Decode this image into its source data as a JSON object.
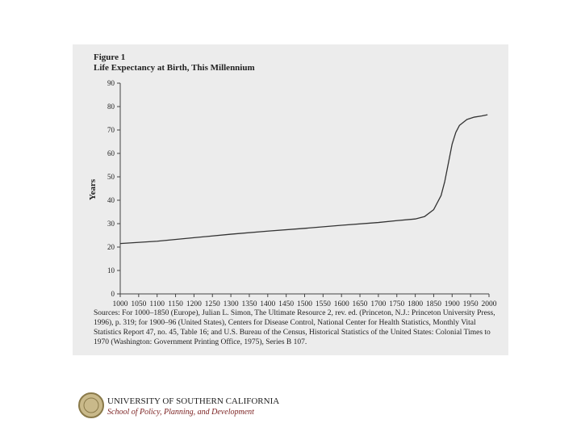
{
  "chart_data": {
    "type": "line",
    "figure_label": "Figure 1",
    "title": "Life Expectancy at Birth, This Millennium",
    "y_label": "Years",
    "x": [
      1000,
      1100,
      1200,
      1300,
      1400,
      1500,
      1600,
      1700,
      1750,
      1800,
      1825,
      1850,
      1870,
      1880,
      1890,
      1900,
      1910,
      1920,
      1940,
      1960,
      1980,
      1996
    ],
    "values": [
      21.5,
      22.5,
      24,
      25.5,
      26.8,
      28,
      29.3,
      30.5,
      31.3,
      32,
      33,
      36,
      42,
      48,
      56,
      64,
      69,
      72,
      74.5,
      75.5,
      76,
      76.5
    ],
    "color": "#333333",
    "xlim": [
      1000,
      2000
    ],
    "xticks": [
      1000,
      1050,
      1100,
      1150,
      1200,
      1250,
      1300,
      1350,
      1400,
      1450,
      1500,
      1550,
      1600,
      1650,
      1700,
      1750,
      1800,
      1850,
      1900,
      1950,
      2000
    ],
    "ylim": [
      0,
      90
    ],
    "yticks": [
      0,
      10,
      20,
      30,
      40,
      50,
      60,
      70,
      80,
      90
    ],
    "grid": false
  },
  "source": "Sources: For 1000–1850 (Europe), Julian L. Simon, The Ultimate Resource 2, rev. ed. (Princeton, N.J.: Princeton University Press, 1996), p. 319; for 1900–96 (United States), Centers for Disease Control, National Center for Health Statistics, Monthly Vital Statistics Report 47, no. 45, Table 16; and U.S. Bureau of the Census, Historical Statistics of the United States: Colonial Times to 1970 (Washington: Government Printing Office, 1975), Series B 107.",
  "footer": {
    "university": "UNIVERSITY OF SOUTHERN CALIFORNIA",
    "school": "School of Policy, Planning, and Development"
  }
}
